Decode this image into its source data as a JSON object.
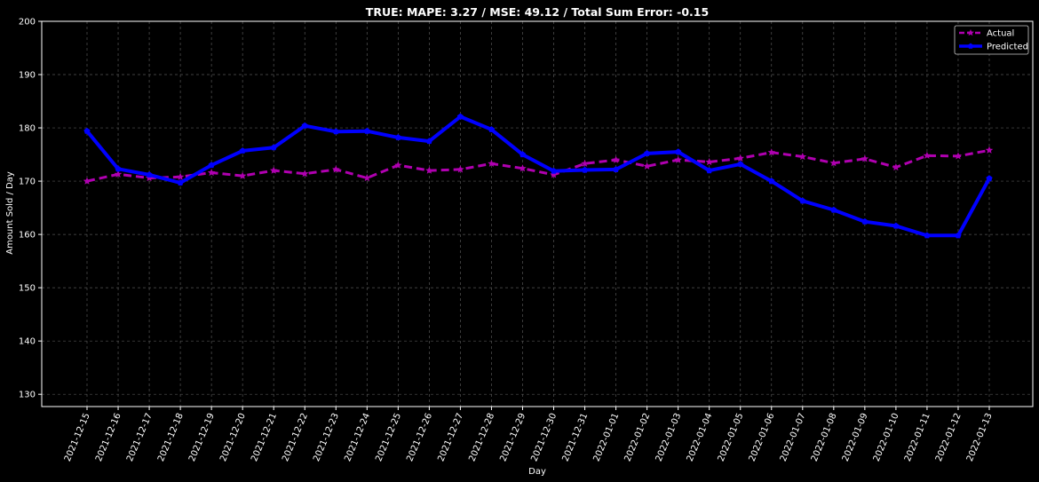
{
  "chart_data": {
    "type": "line",
    "title": "TRUE: MAPE: 3.27 / MSE: 49.12 / Total Sum Error: -0.15",
    "xlabel": "Day",
    "ylabel": "Amount Sold / Day",
    "ylim": [
      127.7,
      200
    ],
    "yticks": [
      130,
      140,
      150,
      160,
      170,
      180,
      190,
      200
    ],
    "grid": true,
    "legend_position": "top-right",
    "categories": [
      "2021-12-15",
      "2021-12-16",
      "2021-12-17",
      "2021-12-18",
      "2021-12-19",
      "2021-12-20",
      "2021-12-21",
      "2021-12-22",
      "2021-12-23",
      "2021-12-24",
      "2021-12-25",
      "2021-12-26",
      "2021-12-27",
      "2021-12-28",
      "2021-12-29",
      "2021-12-30",
      "2021-12-31",
      "2022-01-01",
      "2022-01-02",
      "2022-01-03",
      "2022-01-04",
      "2022-01-05",
      "2022-01-06",
      "2022-01-07",
      "2022-01-08",
      "2022-01-09",
      "2022-01-10",
      "2022-01-11",
      "2022-01-12",
      "2022-01-13"
    ],
    "series": [
      {
        "name": "Actual",
        "color": "#b000b0",
        "style": "dashed",
        "marker": "star",
        "values": [
          170.0,
          171.3,
          170.6,
          170.8,
          171.6,
          171.0,
          172.0,
          171.4,
          172.2,
          170.6,
          173.0,
          172.0,
          172.2,
          173.3,
          172.4,
          171.2,
          173.3,
          174.0,
          172.8,
          174.0,
          173.6,
          174.3,
          175.4,
          174.6,
          173.4,
          174.2,
          172.6,
          174.8,
          174.7,
          175.8
        ]
      },
      {
        "name": "Predicted",
        "color": "#0000ff",
        "style": "solid",
        "marker": "pentagon",
        "values": [
          179.4,
          172.3,
          171.2,
          169.7,
          173.0,
          175.7,
          176.3,
          180.4,
          179.3,
          179.4,
          178.2,
          177.5,
          182.1,
          179.7,
          175.0,
          171.9,
          172.1,
          172.2,
          175.2,
          175.5,
          172.0,
          173.2,
          170.0,
          166.3,
          164.6,
          162.4,
          161.6,
          159.8,
          159.8,
          170.5
        ]
      }
    ]
  }
}
